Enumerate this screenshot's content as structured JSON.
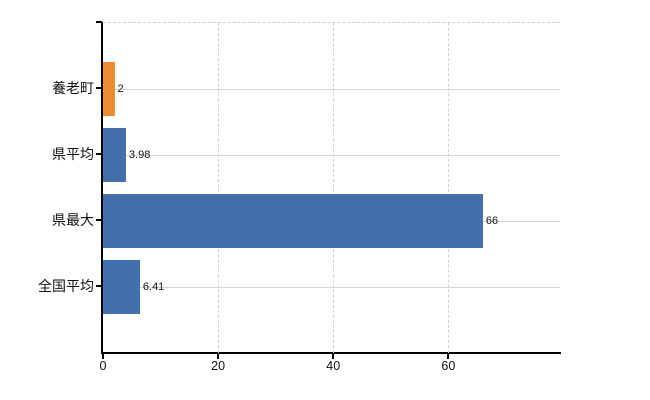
{
  "chart_data": {
    "type": "bar",
    "orientation": "horizontal",
    "title": "",
    "xlabel": "",
    "ylabel": "",
    "categories": [
      "養老町",
      "県平均",
      "県最大",
      "全国平均"
    ],
    "values": [
      2,
      3.98,
      66,
      6.41
    ],
    "value_labels": [
      "2",
      "3.98",
      "66",
      "6.41"
    ],
    "bar_colors": [
      "#ee8c34",
      "#4170ad",
      "#4170ad",
      "#4170ad"
    ],
    "xlim": [
      0,
      79.4
    ],
    "xticks": [
      0,
      20,
      40,
      60
    ],
    "xtick_labels": [
      "0",
      "20",
      "40",
      "60"
    ],
    "legend": null,
    "grid": {
      "vertical_style": "dashed",
      "horizontal_style": "solid",
      "color": "#d4d4d4"
    },
    "colors": {
      "axis": "#000000",
      "text": "#111111",
      "background": "#ffffff"
    }
  }
}
